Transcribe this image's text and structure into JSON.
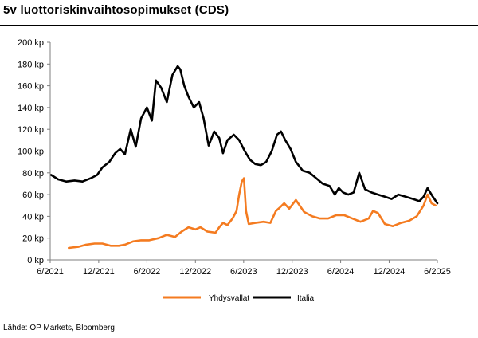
{
  "header": {
    "title": "5v luottoriskinvaihtosopimukset (CDS)"
  },
  "footer": {
    "source": "Lähde: OP Markets, Bloomberg"
  },
  "colors": {
    "usa": "#f47b20",
    "italy": "#000000",
    "axis": "#7f7f7f"
  },
  "chart_data": {
    "type": "line",
    "title": "5v luottoriskinvaihtosopimukset (CDS)",
    "xlabel": "",
    "ylabel": "",
    "ylim": [
      0,
      200
    ],
    "yticks": [
      0,
      20,
      40,
      60,
      80,
      100,
      120,
      140,
      160,
      180,
      200
    ],
    "ytick_labels": [
      "0 kp",
      "20 kp",
      "40 kp",
      "60 kp",
      "80 kp",
      "100 kp",
      "120 kp",
      "140 kp",
      "160 kp",
      "180 kp",
      "200 kp"
    ],
    "xlim": [
      "2021-06",
      "2025-06"
    ],
    "xticks": [
      "2021-06",
      "2021-12",
      "2022-06",
      "2022-12",
      "2023-06",
      "2023-12",
      "2024-06",
      "2024-12",
      "2025-06"
    ],
    "xtick_labels": [
      "6/2021",
      "12/2021",
      "6/2022",
      "12/2022",
      "6/2023",
      "12/2023",
      "6/2024",
      "12/2024",
      "6/2025"
    ],
    "grid": false,
    "legend": "bottom-center",
    "series": [
      {
        "name": "Yhdysvallat",
        "color": "#f47b20",
        "x": [
          "2021-08-10",
          "2021-09-15",
          "2021-10-15",
          "2021-11-15",
          "2021-12-15",
          "2022-01-15",
          "2022-02-15",
          "2022-03-10",
          "2022-04-10",
          "2022-05-10",
          "2022-06-10",
          "2022-07-15",
          "2022-08-15",
          "2022-09-15",
          "2022-10-10",
          "2022-11-05",
          "2022-12-01",
          "2022-12-20",
          "2023-01-15",
          "2023-02-15",
          "2023-03-01",
          "2023-03-15",
          "2023-04-01",
          "2023-04-20",
          "2023-05-05",
          "2023-05-15",
          "2023-05-25",
          "2023-06-02",
          "2023-06-10",
          "2023-06-20",
          "2023-07-15",
          "2023-08-15",
          "2023-09-10",
          "2023-10-01",
          "2023-10-15",
          "2023-11-01",
          "2023-11-20",
          "2023-12-15",
          "2024-01-15",
          "2024-02-15",
          "2024-03-15",
          "2024-04-15",
          "2024-05-15",
          "2024-06-15",
          "2024-07-15",
          "2024-08-15",
          "2024-09-15",
          "2024-10-01",
          "2024-10-20",
          "2024-11-15",
          "2024-12-15",
          "2025-01-15",
          "2025-02-15",
          "2025-03-15",
          "2025-04-10",
          "2025-04-25",
          "2025-05-10",
          "2025-05-25"
        ],
        "y": [
          11,
          12,
          14,
          15,
          15,
          13,
          13,
          14,
          17,
          18,
          18,
          20,
          23,
          21,
          26,
          30,
          28,
          30,
          26,
          25,
          30,
          34,
          32,
          38,
          45,
          60,
          72,
          75,
          45,
          33,
          34,
          35,
          34,
          45,
          48,
          52,
          47,
          55,
          44,
          40,
          38,
          38,
          41,
          41,
          38,
          35,
          38,
          45,
          43,
          33,
          31,
          34,
          36,
          40,
          50,
          60,
          52,
          50
        ]
      },
      {
        "name": "Italia",
        "color": "#000000",
        "x": [
          "2021-06-05",
          "2021-07-01",
          "2021-08-01",
          "2021-09-01",
          "2021-10-01",
          "2021-11-01",
          "2021-11-25",
          "2021-12-15",
          "2022-01-10",
          "2022-02-01",
          "2022-02-20",
          "2022-03-10",
          "2022-04-01",
          "2022-04-20",
          "2022-05-10",
          "2022-06-01",
          "2022-06-20",
          "2022-07-05",
          "2022-07-25",
          "2022-08-15",
          "2022-09-05",
          "2022-09-25",
          "2022-10-05",
          "2022-10-20",
          "2022-11-05",
          "2022-11-25",
          "2022-12-15",
          "2023-01-01",
          "2023-01-20",
          "2023-02-10",
          "2023-03-01",
          "2023-03-15",
          "2023-04-01",
          "2023-04-25",
          "2023-05-15",
          "2023-06-05",
          "2023-06-25",
          "2023-07-15",
          "2023-08-05",
          "2023-08-25",
          "2023-09-15",
          "2023-10-05",
          "2023-10-20",
          "2023-11-05",
          "2023-11-25",
          "2023-12-15",
          "2024-01-10",
          "2024-02-05",
          "2024-03-01",
          "2024-03-25",
          "2024-04-20",
          "2024-05-10",
          "2024-05-25",
          "2024-06-10",
          "2024-06-30",
          "2024-07-20",
          "2024-08-10",
          "2024-09-01",
          "2024-09-25",
          "2024-10-20",
          "2024-11-15",
          "2024-12-10",
          "2025-01-05",
          "2025-02-01",
          "2025-03-01",
          "2025-03-25",
          "2025-04-10",
          "2025-04-25",
          "2025-05-15",
          "2025-06-01"
        ],
        "y": [
          78,
          74,
          72,
          73,
          72,
          75,
          78,
          85,
          90,
          98,
          102,
          97,
          120,
          104,
          130,
          140,
          128,
          165,
          158,
          145,
          170,
          178,
          175,
          160,
          150,
          140,
          145,
          130,
          105,
          118,
          112,
          98,
          110,
          115,
          110,
          100,
          92,
          88,
          87,
          90,
          100,
          115,
          118,
          110,
          102,
          90,
          82,
          80,
          75,
          70,
          68,
          60,
          66,
          62,
          60,
          62,
          80,
          65,
          62,
          60,
          58,
          56,
          60,
          58,
          56,
          54,
          58,
          66,
          58,
          52
        ]
      }
    ]
  }
}
